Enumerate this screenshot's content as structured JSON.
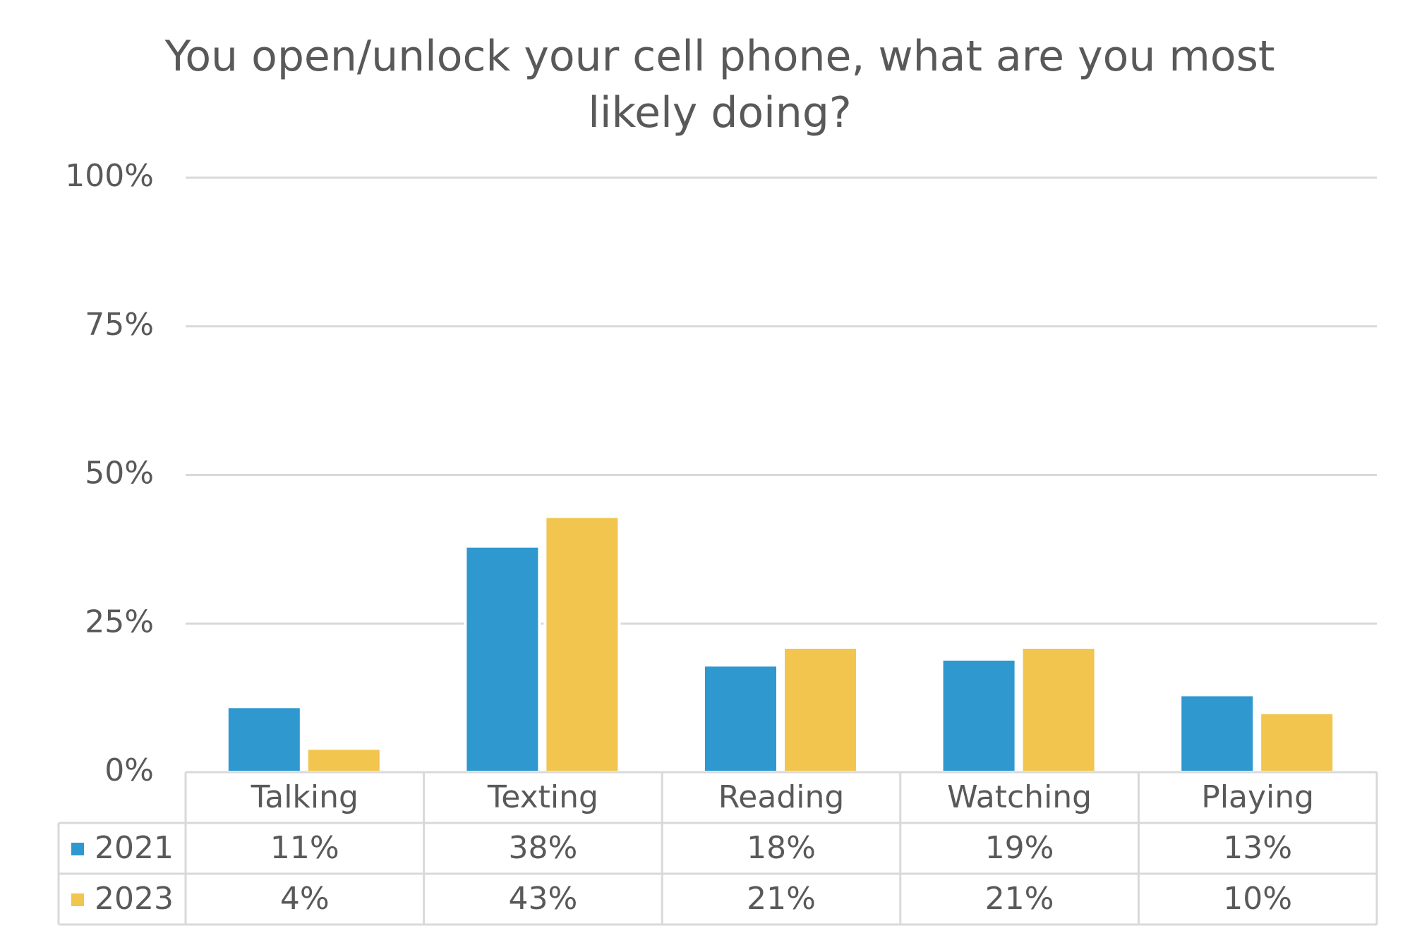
{
  "chart_data": {
    "type": "bar",
    "title": "You open/unlock your cell phone, what are you most likely doing?",
    "categories": [
      "Talking",
      "Texting",
      "Reading",
      "Watching",
      "Playing"
    ],
    "series": [
      {
        "name": "2021",
        "color": "#2e98cf",
        "values": [
          11,
          38,
          18,
          19,
          13
        ],
        "value_labels": [
          "11%",
          "38%",
          "18%",
          "19%",
          "13%"
        ]
      },
      {
        "name": "2023",
        "color": "#f2c54f",
        "values": [
          4,
          43,
          21,
          21,
          10
        ],
        "value_labels": [
          "4%",
          "43%",
          "21%",
          "21%",
          "10%"
        ]
      }
    ],
    "ylim": [
      0,
      100
    ],
    "yticks": [
      {
        "value": 0,
        "label": "0%"
      },
      {
        "value": 25,
        "label": "25%"
      },
      {
        "value": 50,
        "label": "50%"
      },
      {
        "value": 75,
        "label": "75%"
      },
      {
        "value": 100,
        "label": "100%"
      }
    ],
    "grid": true,
    "data_table": true
  }
}
